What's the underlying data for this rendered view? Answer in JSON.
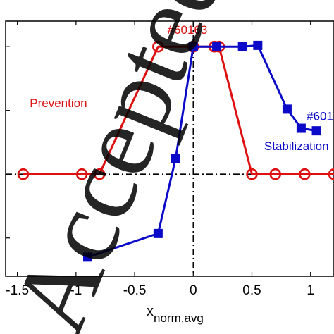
{
  "chart_data": {
    "type": "line",
    "xlabel_main": "x",
    "xlabel_sub": "norm,avg",
    "xlim": [
      -1.6,
      1.2
    ],
    "ylim": [
      -1.6,
      2.4
    ],
    "x_ticks": [
      -1.5,
      -1,
      -0.5,
      0,
      0.5,
      1
    ],
    "x_tick_labels": [
      "-1.5",
      "-1",
      "-0.5",
      "0",
      "0.5",
      "1"
    ],
    "y_ticks": [
      -1,
      0,
      1,
      2
    ],
    "reference_lines": {
      "y": 0,
      "x": 0,
      "style": "dash-dot"
    },
    "grid": false,
    "series": [
      {
        "name": "Prevention",
        "color": "#dd1111",
        "marker": "circle",
        "x": [
          -1.45,
          -0.95,
          -0.8,
          -0.3,
          0,
          0.18,
          0.22,
          0.5,
          0.7,
          0.95,
          1.2
        ],
        "y": [
          0,
          0,
          0,
          2,
          2,
          2,
          2,
          0,
          0,
          0,
          0
        ]
      },
      {
        "name": "Stabilization",
        "color": "#0a0ac8",
        "marker": "square",
        "x": [
          -0.9,
          -0.3,
          -0.15,
          0,
          0.2,
          0.42,
          0.55,
          0.8,
          0.92,
          1.05
        ],
        "y": [
          -1.3,
          -0.93,
          0.25,
          2,
          2,
          2,
          2.02,
          1.02,
          0.72,
          0.68
        ]
      }
    ],
    "annotations": [
      {
        "text": "#60163",
        "color": "#dd1111",
        "x": -0.05,
        "y": 2.2
      },
      {
        "text": "Prevention",
        "color": "#dd1111",
        "x": -1.15,
        "y": 1.05
      },
      {
        "text": "Stabilization",
        "color": "#0a0ac8",
        "x": 0.88,
        "y": 0.38
      },
      {
        "text": "#601",
        "color": "#0a0ac8",
        "x": 1.08,
        "y": 0.85
      }
    ],
    "watermark": "Accepted"
  }
}
